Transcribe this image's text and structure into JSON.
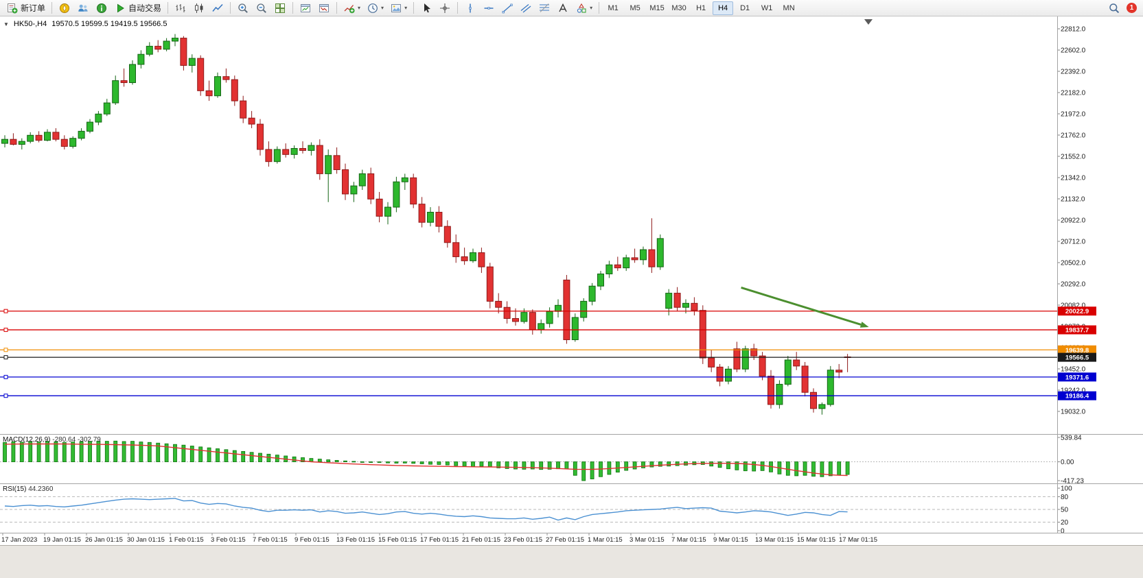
{
  "toolbar": {
    "caret_char": "▾",
    "buttons": [
      {
        "group": 0,
        "name": "new-order-button",
        "icon": "new-order",
        "label": "新订单"
      },
      {
        "group": 1,
        "name": "metaeditor-button",
        "icon": "compass"
      },
      {
        "group": 1,
        "name": "community-button",
        "icon": "users"
      },
      {
        "group": 1,
        "name": "help-button",
        "icon": "info"
      },
      {
        "group": 1,
        "name": "auto-trading-button",
        "icon": "play",
        "label": "自动交易"
      },
      {
        "group": 2,
        "name": "bar-chart-button",
        "icon": "bars"
      },
      {
        "group": 2,
        "name": "candlestick-chart-button",
        "icon": "candles"
      },
      {
        "group": 2,
        "name": "line-chart-button",
        "icon": "line"
      },
      {
        "group": 3,
        "name": "zoom-in-button",
        "icon": "zoom-in"
      },
      {
        "group": 3,
        "name": "zoom-out-button",
        "icon": "zoom-out"
      },
      {
        "group": 3,
        "name": "tile-windows-button",
        "icon": "grid"
      },
      {
        "group": 4,
        "name": "new-chart-button",
        "icon": "window-up"
      },
      {
        "group": 4,
        "name": "chart-list-button",
        "icon": "window-down"
      },
      {
        "group": 5,
        "name": "indicators-button",
        "icon": "indicator-plus",
        "caret": true
      },
      {
        "group": 5,
        "name": "periods-button",
        "icon": "clock",
        "caret": true
      },
      {
        "group": 5,
        "name": "templates-button",
        "icon": "template",
        "caret": true
      },
      {
        "group": 6,
        "name": "cursor-button",
        "icon": "cursor"
      },
      {
        "group": 6,
        "name": "crosshair-button",
        "icon": "crosshair"
      },
      {
        "group": 7,
        "name": "vertical-line-button",
        "icon": "vline"
      },
      {
        "group": 7,
        "name": "horizontal-line-button",
        "icon": "hline"
      },
      {
        "group": 7,
        "name": "trendline-button",
        "icon": "trendline"
      },
      {
        "group": 7,
        "name": "equidistant-channel-button",
        "icon": "channel"
      },
      {
        "group": 7,
        "name": "fibonacci-button",
        "icon": "fibonacci"
      },
      {
        "group": 7,
        "name": "text-label-button",
        "icon": "text"
      },
      {
        "group": 7,
        "name": "arrows-button",
        "icon": "shapes",
        "caret": true
      }
    ],
    "timeframes": [
      "M1",
      "M5",
      "M15",
      "M30",
      "H1",
      "H4",
      "D1",
      "W1",
      "MN"
    ],
    "active_timeframe": "H4",
    "notification_badge": "1"
  },
  "chart": {
    "collapse_caret": "▼",
    "symbol": "HK50-,H4",
    "ohlc": "19570.5 19599.5 19419.5 19566.5",
    "macd_label": "MACD(12,26,9)",
    "macd_values": "-280.64 -302.79",
    "rsi_label": "RSI(15)",
    "rsi_value": "44.2360"
  },
  "chart_data": {
    "type": "candlestick",
    "symbol": "HK50-",
    "timeframe": "H4",
    "price_axis_range": [
      19032.0,
      22812.0
    ],
    "price_axis_labels": [
      "22812.0",
      "22602.0",
      "22392.0",
      "22182.0",
      "21972.0",
      "21762.0",
      "21552.0",
      "21342.0",
      "21132.0",
      "20922.0",
      "20712.0",
      "20502.0",
      "20292.0",
      "20082.0",
      "19872.0",
      "19662.0",
      "19452.0",
      "19242.0",
      "19032.0"
    ],
    "date_axis_labels": [
      "17 Jan 2023",
      "19 Jan 01:15",
      "26 Jan 01:15",
      "30 Jan 01:15",
      "1 Feb 01:15",
      "3 Feb 01:15",
      "7 Feb 01:15",
      "9 Feb 01:15",
      "13 Feb 01:15",
      "15 Feb 01:15",
      "17 Feb 01:15",
      "21 Feb 01:15",
      "23 Feb 01:15",
      "27 Feb 01:15",
      "1 Mar 01:15",
      "3 Mar 01:15",
      "7 Mar 01:15",
      "9 Mar 01:15",
      "13 Mar 01:15",
      "15 Mar 01:15",
      "17 Mar 01:15"
    ],
    "colors": {
      "up_fill": "#2db82d",
      "up_stroke": "#146414",
      "down_fill": "#e23232",
      "down_stroke": "#8f1a1a"
    },
    "candles": [
      [
        21680,
        21760,
        21640,
        21720
      ],
      [
        21720,
        21780,
        21660,
        21670
      ],
      [
        21670,
        21730,
        21620,
        21700
      ],
      [
        21700,
        21790,
        21680,
        21760
      ],
      [
        21760,
        21800,
        21690,
        21710
      ],
      [
        21710,
        21820,
        21700,
        21790
      ],
      [
        21790,
        21830,
        21700,
        21720
      ],
      [
        21720,
        21760,
        21620,
        21650
      ],
      [
        21650,
        21750,
        21630,
        21730
      ],
      [
        21730,
        21830,
        21710,
        21800
      ],
      [
        21800,
        21920,
        21780,
        21890
      ],
      [
        21890,
        22000,
        21860,
        21970
      ],
      [
        21970,
        22120,
        21950,
        22080
      ],
      [
        22080,
        22350,
        22060,
        22300
      ],
      [
        22300,
        22420,
        22240,
        22280
      ],
      [
        22280,
        22500,
        22260,
        22460
      ],
      [
        22460,
        22600,
        22420,
        22560
      ],
      [
        22560,
        22680,
        22540,
        22640
      ],
      [
        22640,
        22700,
        22580,
        22610
      ],
      [
        22610,
        22720,
        22590,
        22690
      ],
      [
        22690,
        22760,
        22640,
        22720
      ],
      [
        22720,
        22740,
        22400,
        22450
      ],
      [
        22450,
        22560,
        22380,
        22520
      ],
      [
        22520,
        22550,
        22150,
        22200
      ],
      [
        22200,
        22300,
        22100,
        22150
      ],
      [
        22150,
        22380,
        22130,
        22340
      ],
      [
        22340,
        22420,
        22280,
        22310
      ],
      [
        22310,
        22350,
        22050,
        22100
      ],
      [
        22100,
        22150,
        21880,
        21930
      ],
      [
        21930,
        22000,
        21830,
        21870
      ],
      [
        21870,
        21920,
        21560,
        21620
      ],
      [
        21620,
        21700,
        21450,
        21500
      ],
      [
        21500,
        21650,
        21480,
        21620
      ],
      [
        21620,
        21680,
        21540,
        21570
      ],
      [
        21570,
        21660,
        21530,
        21630
      ],
      [
        21630,
        21700,
        21580,
        21610
      ],
      [
        21610,
        21690,
        21560,
        21660
      ],
      [
        21660,
        21720,
        21320,
        21380
      ],
      [
        21380,
        21620,
        21100,
        21560
      ],
      [
        21560,
        21640,
        21380,
        21420
      ],
      [
        21420,
        21480,
        21120,
        21180
      ],
      [
        21180,
        21300,
        21100,
        21260
      ],
      [
        21260,
        21420,
        21220,
        21380
      ],
      [
        21380,
        21440,
        21080,
        21130
      ],
      [
        21130,
        21200,
        20900,
        20960
      ],
      [
        20960,
        21100,
        20880,
        21050
      ],
      [
        21050,
        21350,
        21000,
        21300
      ],
      [
        21300,
        21380,
        21220,
        21340
      ],
      [
        21340,
        21380,
        21040,
        21080
      ],
      [
        21080,
        21150,
        20850,
        20900
      ],
      [
        20900,
        21050,
        20860,
        21000
      ],
      [
        21000,
        21060,
        20800,
        20860
      ],
      [
        20860,
        20920,
        20650,
        20700
      ],
      [
        20700,
        20780,
        20500,
        20560
      ],
      [
        20560,
        20650,
        20480,
        20520
      ],
      [
        20520,
        20640,
        20500,
        20600
      ],
      [
        20600,
        20650,
        20400,
        20460
      ],
      [
        20460,
        20500,
        20050,
        20120
      ],
      [
        20120,
        20200,
        20000,
        20060
      ],
      [
        20060,
        20120,
        19900,
        19950
      ],
      [
        19950,
        20050,
        19880,
        19920
      ],
      [
        19920,
        20050,
        19900,
        20010
      ],
      [
        20010,
        20040,
        19790,
        19840
      ],
      [
        19840,
        19940,
        19800,
        19900
      ],
      [
        19900,
        20060,
        19860,
        20020
      ],
      [
        20020,
        20140,
        19960,
        20080
      ],
      [
        20330,
        20380,
        19700,
        19740
      ],
      [
        19740,
        20000,
        19720,
        19960
      ],
      [
        19960,
        20150,
        19920,
        20120
      ],
      [
        20120,
        20300,
        20080,
        20270
      ],
      [
        20270,
        20420,
        20230,
        20390
      ],
      [
        20390,
        20520,
        20350,
        20480
      ],
      [
        20480,
        20560,
        20420,
        20450
      ],
      [
        20450,
        20580,
        20420,
        20550
      ],
      [
        20550,
        20640,
        20500,
        20530
      ],
      [
        20530,
        20660,
        20480,
        20630
      ],
      [
        20630,
        20940,
        20400,
        20460
      ],
      [
        20460,
        20780,
        20430,
        20740
      ],
      [
        20050,
        20240,
        19980,
        20200
      ],
      [
        20200,
        20260,
        20020,
        20060
      ],
      [
        20060,
        20140,
        20000,
        20100
      ],
      [
        20100,
        20160,
        19980,
        20030
      ],
      [
        20030,
        20080,
        19500,
        19560
      ],
      [
        19560,
        19640,
        19420,
        19470
      ],
      [
        19470,
        19500,
        19280,
        19330
      ],
      [
        19330,
        19480,
        19300,
        19450
      ],
      [
        19650,
        19720,
        19420,
        19450
      ],
      [
        19450,
        19680,
        19420,
        19650
      ],
      [
        19650,
        19700,
        19540,
        19580
      ],
      [
        19580,
        19620,
        19340,
        19380
      ],
      [
        19380,
        19440,
        19060,
        19100
      ],
      [
        19100,
        19340,
        19060,
        19300
      ],
      [
        19300,
        19580,
        19280,
        19540
      ],
      [
        19540,
        19620,
        19440,
        19480
      ],
      [
        19480,
        19520,
        19180,
        19220
      ],
      [
        19220,
        19260,
        19020,
        19060
      ],
      [
        19060,
        19120,
        19000,
        19100
      ],
      [
        19100,
        19480,
        19080,
        19440
      ],
      [
        19440,
        19500,
        19360,
        19420
      ],
      [
        19570.5,
        19599.5,
        19419.5,
        19566.5
      ]
    ],
    "levels": [
      {
        "price": 20022.9,
        "label": "20022.9",
        "color": "#d90000"
      },
      {
        "price": 19837.7,
        "label": "19837.7",
        "color": "#d90000"
      },
      {
        "price": 19639.8,
        "label": "19639.8",
        "color": "#f08c00"
      },
      {
        "price": 19566.5,
        "label": "19566.5",
        "color": "#1a1a1a"
      },
      {
        "price": 19371.6,
        "label": "19371.6",
        "color": "#0000d0"
      },
      {
        "price": 19186.4,
        "label": "19186.4",
        "color": "#0000d0"
      }
    ],
    "annotation_arrow": {
      "from_bar": 86.5,
      "from_price": 20255,
      "to_bar": 101.5,
      "to_price": 19865,
      "color": "#4c8f2f"
    },
    "macd": {
      "scale_labels": [
        "539.84",
        "0.00",
        "-417.23"
      ],
      "colors": {
        "histogram": "#33bb33",
        "histogram_stroke": "#0c720c",
        "signal": "#e03131"
      },
      "histogram": [
        430,
        445,
        435,
        450,
        440,
        455,
        445,
        430,
        440,
        450,
        455,
        460,
        455,
        460,
        450,
        455,
        440,
        430,
        415,
        400,
        385,
        370,
        350,
        330,
        310,
        290,
        270,
        250,
        230,
        210,
        190,
        170,
        150,
        130,
        110,
        92,
        75,
        60,
        45,
        32,
        20,
        10,
        2,
        -5,
        -15,
        -25,
        -30,
        -28,
        -35,
        -45,
        -55,
        -60,
        -70,
        -85,
        -100,
        -105,
        -100,
        -110,
        -135,
        -150,
        -160,
        -165,
        -160,
        -170,
        -165,
        -155,
        -160,
        -300,
        -417,
        -380,
        -330,
        -280,
        -230,
        -190,
        -160,
        -135,
        -115,
        -100,
        -95,
        -85,
        -75,
        -65,
        -60,
        -95,
        -125,
        -155,
        -180,
        -200,
        -205,
        -195,
        -225,
        -270,
        -300,
        -310,
        -300,
        -320,
        -330,
        -310,
        -295,
        -280.64
      ],
      "signal": [
        390,
        392,
        394,
        395,
        396,
        396,
        395,
        394,
        392,
        390,
        388,
        386,
        383,
        380,
        376,
        372,
        366,
        360,
        352,
        332,
        313,
        293,
        274,
        254,
        235,
        215,
        196,
        176,
        157,
        137,
        118,
        98,
        79,
        59,
        40,
        20,
        0,
        -10,
        -20,
        -30,
        -40,
        -48,
        -56,
        -63,
        -70,
        -76,
        -81,
        -86,
        -90,
        -94,
        -97,
        -100,
        -103,
        -106,
        -108,
        -110,
        -112,
        -114,
        -116,
        -119,
        -122,
        -126,
        -130,
        -135,
        -140,
        -148,
        -158,
        -165,
        -168,
        -166,
        -160,
        -150,
        -138,
        -125,
        -112,
        -100,
        -88,
        -76,
        -65,
        -55,
        -47,
        -40,
        -36,
        -34,
        -33,
        -34,
        -37,
        -45,
        -60,
        -80,
        -105,
        -135,
        -165,
        -195,
        -222,
        -248,
        -270,
        -288,
        -298,
        -302.79
      ]
    },
    "rsi": {
      "scale_labels": [
        "100",
        "80",
        "50",
        "20",
        "0"
      ],
      "levels": [
        80,
        50,
        20
      ],
      "color": "#4a90d2",
      "series": [
        58,
        57,
        59,
        60,
        58,
        59,
        57,
        56,
        58,
        60,
        63,
        66,
        69,
        72,
        74,
        75,
        74,
        73,
        74,
        75,
        76,
        70,
        71,
        65,
        62,
        64,
        63,
        58,
        55,
        53,
        48,
        45,
        48,
        48,
        49,
        48,
        49,
        44,
        47,
        45,
        41,
        42,
        44,
        41,
        38,
        40,
        44,
        45,
        41,
        39,
        41,
        39,
        36,
        34,
        33,
        35,
        33,
        30,
        29,
        28,
        28,
        30,
        27,
        29,
        32,
        25,
        30,
        26,
        33,
        38,
        40,
        42,
        44,
        47,
        48,
        49,
        50,
        51,
        53,
        55,
        52,
        53,
        54,
        53,
        46,
        44,
        42,
        44,
        47,
        46,
        44,
        40,
        36,
        39,
        43,
        42,
        38,
        36,
        45,
        44.236
      ]
    }
  }
}
